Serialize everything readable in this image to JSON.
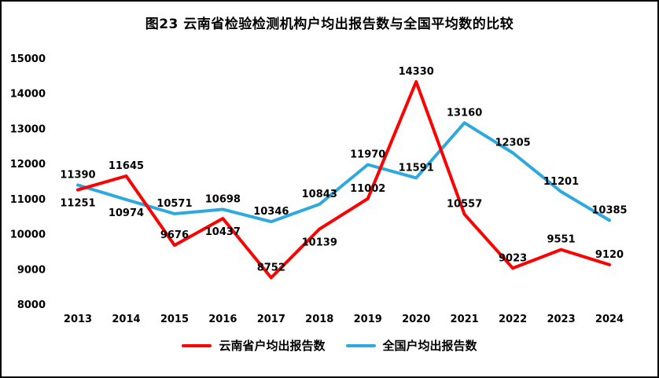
{
  "chart_data": {
    "type": "line",
    "title": "图23 云南省检验检测机构户均出报告数与全国平均数的比较",
    "categories": [
      "2013",
      "2014",
      "2015",
      "2016",
      "2017",
      "2018",
      "2019",
      "2020",
      "2021",
      "2022",
      "2023",
      "2024"
    ],
    "series": [
      {
        "name": "云南省户均出报告数",
        "color": "#FF0000",
        "values": [
          11251,
          11645,
          9676,
          10437,
          8752,
          10139,
          11002,
          14330,
          10557,
          9023,
          9551,
          9120
        ],
        "label_positions": [
          "below",
          "above",
          "above",
          "below",
          "above",
          "below",
          "above",
          "above",
          "above",
          "above",
          "above",
          "above"
        ]
      },
      {
        "name": "全国户均出报告数",
        "color": "#2DA9DF",
        "values": [
          11390,
          10974,
          10571,
          10698,
          10346,
          10843,
          11970,
          11591,
          13160,
          12305,
          11201,
          10385
        ],
        "label_positions": [
          "above",
          "below",
          "above",
          "above",
          "above",
          "above",
          "above",
          "above",
          "above",
          "above",
          "above",
          "above"
        ]
      }
    ],
    "ylim": [
      8000,
      15000
    ],
    "ytick_step": 1000,
    "yticks": [
      "8000",
      "9000",
      "10000",
      "11000",
      "12000",
      "13000",
      "14000",
      "15000"
    ],
    "grid": false,
    "legend_position": "bottom",
    "xlabel": "",
    "ylabel": ""
  }
}
